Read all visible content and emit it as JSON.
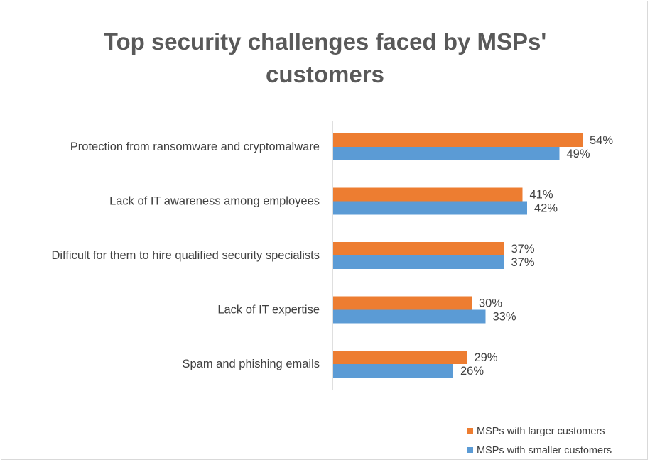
{
  "chart_data": {
    "type": "bar",
    "orientation": "horizontal",
    "title": "Top security challenges faced by MSPs' customers",
    "title_lines": [
      "Top security challenges faced by MSPs'",
      "customers"
    ],
    "categories": [
      "Protection from ransomware and cryptomalware",
      "Lack of IT awareness among employees",
      "Difficult for them to hire qualified security specialists",
      "Lack of IT expertise",
      "Spam and phishing emails"
    ],
    "series": [
      {
        "name": "MSPs with larger customers",
        "color": "#ED7D31",
        "values": [
          54,
          41,
          37,
          30,
          29
        ],
        "labels": [
          "54%",
          "41%",
          "37%",
          "30%",
          "29%"
        ]
      },
      {
        "name": "MSPs with smaller customers",
        "color": "#5B9BD5",
        "values": [
          49,
          42,
          37,
          33,
          26
        ],
        "labels": [
          "49%",
          "42%",
          "37%",
          "33%",
          "26%"
        ]
      }
    ],
    "xlim": [
      0,
      60
    ],
    "grid": false,
    "legend_position": "bottom-right"
  }
}
